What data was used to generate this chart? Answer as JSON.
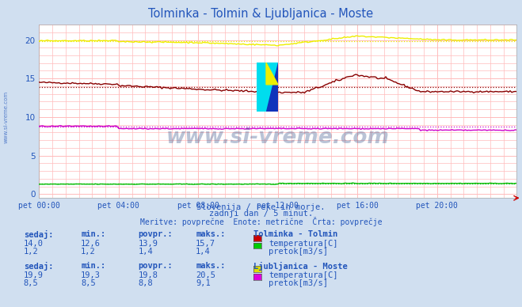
{
  "title": "Tolminka - Tolmin & Ljubljanica - Moste",
  "title_color": "#2255bb",
  "bg_color": "#d0dff0",
  "plot_bg_color": "#ffffff",
  "xlim": [
    0,
    288
  ],
  "ylim": [
    -0.5,
    22
  ],
  "yticks": [
    0,
    5,
    10,
    15,
    20
  ],
  "xtick_labels": [
    "pet 00:00",
    "pet 04:00",
    "pet 08:00",
    "pet 12:00",
    "pet 16:00",
    "pet 20:00"
  ],
  "xtick_positions": [
    0,
    48,
    96,
    144,
    192,
    240
  ],
  "subtitle1": "Slovenija / reke in morje.",
  "subtitle2": "zadnji dan / 5 minut.",
  "subtitle3": "Meritve: povprečne  Enote: metrične  Črta: povprečje",
  "subtitle_color": "#2255bb",
  "watermark": "www.si-vreme.com",
  "watermark_color": "#1a3a7a",
  "tolminka_label": "Tolminka - Tolmin",
  "ljubljanica_label": "Ljubljanica - Moste",
  "color_tolminka_temp": "#880000",
  "color_tolminka_pretok": "#00bb00",
  "color_ljubljanica_temp": "#eeee00",
  "color_ljubljanica_pretok": "#cc00cc",
  "avg_tolminka_temp": 13.9,
  "avg_tolminka_pretok": 1.4,
  "avg_ljubljanica_temp": 19.8,
  "avg_ljubljanica_pretok": 8.8,
  "table_header_color": "#2255bb",
  "table_value_color": "#2255bb",
  "sedaj_label": "sedaj:",
  "min_label": "min.:",
  "povpr_label": "povpr.:",
  "maks_label": "maks.:",
  "tolminka_rows": [
    {
      "sedaj": "14,0",
      "min": "12,6",
      "povpr": "13,9",
      "maks": "15,7",
      "color": "#cc0000",
      "unit": "temperatura[C]"
    },
    {
      "sedaj": "1,2",
      "min": "1,2",
      "povpr": "1,4",
      "maks": "1,4",
      "color": "#00cc00",
      "unit": "pretok[m3/s]"
    }
  ],
  "ljubljanica_rows": [
    {
      "sedaj": "19,9",
      "min": "19,3",
      "povpr": "19,8",
      "maks": "20,5",
      "color": "#dddd00",
      "unit": "temperatura[C]"
    },
    {
      "sedaj": "8,5",
      "min": "8,5",
      "povpr": "8,8",
      "maks": "9,1",
      "color": "#dd00dd",
      "unit": "pretok[m3/s]"
    }
  ],
  "left_label": "www.si-vreme.com"
}
